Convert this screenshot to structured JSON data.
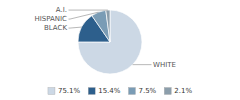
{
  "chart_data": {
    "type": "pie",
    "categories": [
      "WHITE",
      "BLACK",
      "HISPANIC",
      "A.I."
    ],
    "values": [
      75.1,
      15.4,
      7.5,
      2.1
    ],
    "value_labels": [
      "75.1%",
      "15.4%",
      "7.5%",
      "2.1%"
    ],
    "colors": [
      "#ccd8e5",
      "#2d5f8c",
      "#7a9cb5",
      "#8c9eab"
    ],
    "legend": "bottom"
  }
}
